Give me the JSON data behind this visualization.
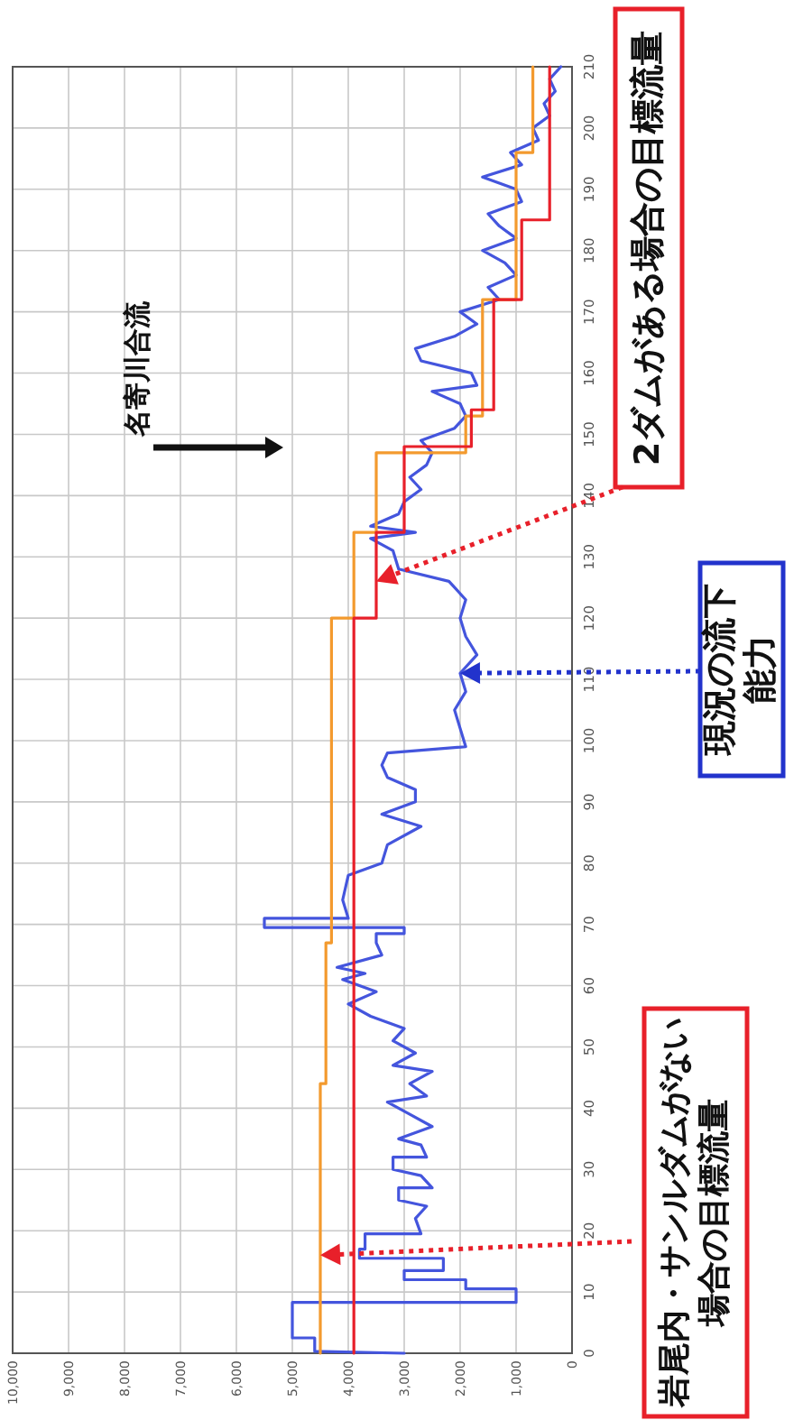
{
  "chart_data": {
    "type": "line",
    "ylim": [
      0,
      210
    ],
    "yticks": [
      0,
      10,
      20,
      30,
      40,
      50,
      60,
      70,
      80,
      90,
      100,
      110,
      120,
      130,
      140,
      150,
      160,
      170,
      180,
      190,
      200,
      210
    ],
    "xlim": [
      10000,
      0
    ],
    "xticks": [
      {
        "value": 10000,
        "label": "10,000"
      },
      {
        "value": 9000,
        "label": "9,000"
      },
      {
        "value": 8000,
        "label": "8,000"
      },
      {
        "value": 7000,
        "label": "7,000"
      },
      {
        "value": 6000,
        "label": "6,000"
      },
      {
        "value": 5000,
        "label": "5,000"
      },
      {
        "value": 4000,
        "label": "4,000"
      },
      {
        "value": 3000,
        "label": "3,000"
      },
      {
        "value": 2000,
        "label": "2,000"
      },
      {
        "value": 1000,
        "label": "1,000"
      },
      0
    ],
    "grid": true,
    "series": [
      {
        "color": "#4455dd",
        "values": [
          0,
          0.3,
          2.5,
          2.5,
          8.3,
          8.3,
          10.5,
          10.5,
          12,
          12,
          13.5,
          13.5,
          15.5,
          15.5,
          17,
          17,
          19.5,
          19.5,
          22,
          24,
          25,
          27,
          27,
          29,
          30,
          32,
          32,
          34,
          35,
          37,
          39,
          41,
          42,
          44,
          46,
          47,
          49,
          51,
          53,
          55,
          57,
          59,
          61,
          62,
          63,
          65,
          67,
          68.5,
          68.5,
          69.5,
          69.5,
          71,
          71,
          74,
          78,
          80,
          83,
          86,
          88,
          90,
          92,
          94,
          96,
          98,
          99,
          102,
          105,
          108,
          111,
          114,
          117,
          120,
          123,
          126,
          128,
          131,
          133,
          134,
          135,
          137,
          139,
          141,
          143,
          145,
          147,
          149,
          151,
          153,
          155,
          157,
          158,
          160,
          162,
          164,
          166,
          168,
          170,
          172,
          174,
          176,
          178,
          180,
          182,
          184,
          186,
          188,
          190,
          192,
          194,
          196,
          198,
          200,
          202,
          204,
          206,
          208,
          210
        ],
        "x": [
          3000,
          4600,
          4600,
          5000,
          5000,
          1000,
          1000,
          1900,
          1900,
          3000,
          3000,
          2300,
          2300,
          3800,
          3800,
          3700,
          3700,
          2700,
          2800,
          2600,
          3100,
          3100,
          2500,
          2700,
          3200,
          3200,
          2600,
          2700,
          3100,
          2500,
          2900,
          3300,
          2600,
          2900,
          2500,
          3200,
          2800,
          3200,
          3000,
          3600,
          4000,
          3500,
          4100,
          3700,
          4200,
          3400,
          3500,
          3500,
          3000,
          3000,
          5500,
          5500,
          4000,
          4100,
          4000,
          3400,
          3300,
          2700,
          3400,
          2800,
          2800,
          3300,
          3400,
          3300,
          1900,
          2000,
          2100,
          1900,
          2000,
          1700,
          1900,
          2000,
          1900,
          2200,
          3100,
          3200,
          3600,
          2800,
          3600,
          3100,
          3000,
          2700,
          2900,
          2600,
          2500,
          2700,
          2100,
          1900,
          2000,
          2500,
          1700,
          1800,
          2700,
          2800,
          2100,
          1700,
          2000,
          1300,
          1500,
          1000,
          1200,
          1600,
          1000,
          1300,
          1500,
          900,
          1000,
          1600,
          900,
          1100,
          600,
          700,
          400,
          500,
          300,
          400,
          200
        ]
      },
      {
        "color": "#f39a2e",
        "values": [
          0,
          44,
          44,
          67,
          67,
          120,
          120,
          134,
          134,
          147,
          147,
          153,
          153,
          172,
          172,
          196,
          196,
          210
        ],
        "x": [
          4500,
          4500,
          4400,
          4400,
          4300,
          4300,
          3900,
          3900,
          3500,
          3500,
          1900,
          1900,
          1600,
          1600,
          1000,
          1000,
          700,
          700
        ]
      },
      {
        "color": "#e8202a",
        "values": [
          0,
          120,
          120,
          134,
          134,
          148,
          148,
          154,
          154,
          172,
          172,
          185,
          185,
          210
        ],
        "x": [
          3900,
          3900,
          3500,
          3500,
          3000,
          3000,
          1800,
          1800,
          1400,
          1400,
          900,
          900,
          400,
          400
        ]
      }
    ],
    "annotations": [
      {
        "text": "2ダムがある場合の目標流量",
        "x": 3500,
        "y": 126
      },
      {
        "text": "現況の流下能力",
        "x": 2000,
        "y": 111
      },
      {
        "text": "岩尾内・サンルダムがない場合の目標流量",
        "x": 4500,
        "y": 16
      },
      "名寄川合流"
    ]
  }
}
